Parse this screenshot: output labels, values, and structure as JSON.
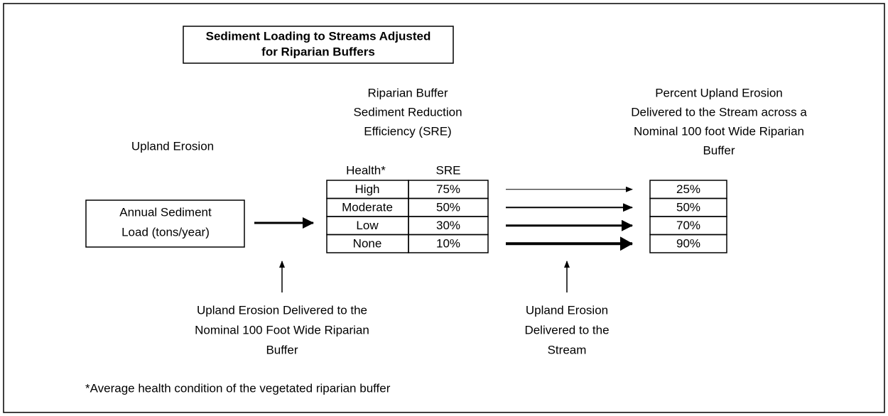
{
  "title": [
    "Sediment Loading to Streams Adjusted",
    "for Riparian Buffers"
  ],
  "upland_header": "Upland Erosion",
  "buffer_header": [
    "Riparian Buffer",
    "Sediment Reduction",
    "Efficiency (SRE)"
  ],
  "delivered_header": [
    "Percent Upland Erosion",
    "Delivered to the Stream across a",
    "Nominal 100 foot Wide Riparian",
    "Buffer"
  ],
  "source_box": [
    "Annual Sediment",
    "Load (tons/year)"
  ],
  "table": {
    "header": [
      "Health*",
      "SRE"
    ],
    "rows": [
      [
        "High",
        "75%"
      ],
      [
        "Moderate",
        "50%"
      ],
      [
        "Low",
        "30%"
      ],
      [
        "None",
        "10%"
      ]
    ]
  },
  "delivered": [
    "25%",
    "50%",
    "70%",
    "90%"
  ],
  "note_buffer": [
    "Upland Erosion Delivered to the",
    "Nominal 100 Foot Wide Riparian",
    "Buffer"
  ],
  "note_stream": [
    "Upland Erosion",
    "Delivered to the",
    "Stream"
  ],
  "footnote": "*Average health condition of the vegetated riparian buffer"
}
